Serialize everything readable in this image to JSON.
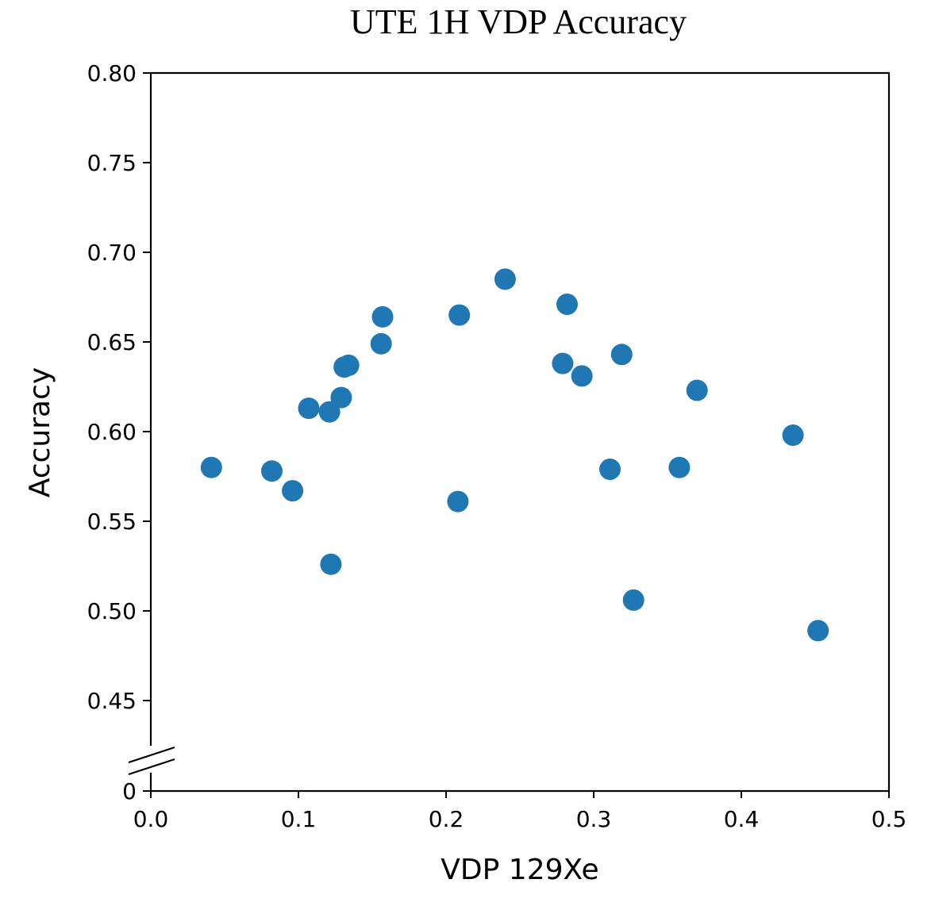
{
  "chart_data": {
    "type": "scatter",
    "title": "UTE 1H VDP Accuracy",
    "xlabel": "VDP 129Xe",
    "ylabel": "Accuracy",
    "xlim": [
      0.0,
      0.5
    ],
    "ylim_main": [
      0.45,
      0.8
    ],
    "axis_break": true,
    "grid": false,
    "marker_color": "#1f77b4",
    "x_ticks": [
      "0.0",
      "0.1",
      "0.2",
      "0.3",
      "0.4",
      "0.5"
    ],
    "y_ticks": [
      "0",
      "0.45",
      "0.50",
      "0.55",
      "0.60",
      "0.65",
      "0.70",
      "0.75",
      "0.80"
    ],
    "points": [
      {
        "x": 0.041,
        "y": 0.58
      },
      {
        "x": 0.082,
        "y": 0.578
      },
      {
        "x": 0.096,
        "y": 0.567
      },
      {
        "x": 0.107,
        "y": 0.613
      },
      {
        "x": 0.121,
        "y": 0.611
      },
      {
        "x": 0.122,
        "y": 0.526
      },
      {
        "x": 0.129,
        "y": 0.619
      },
      {
        "x": 0.131,
        "y": 0.636
      },
      {
        "x": 0.134,
        "y": 0.637
      },
      {
        "x": 0.156,
        "y": 0.649
      },
      {
        "x": 0.157,
        "y": 0.664
      },
      {
        "x": 0.208,
        "y": 0.561
      },
      {
        "x": 0.209,
        "y": 0.665
      },
      {
        "x": 0.24,
        "y": 0.685
      },
      {
        "x": 0.279,
        "y": 0.638
      },
      {
        "x": 0.282,
        "y": 0.671
      },
      {
        "x": 0.292,
        "y": 0.631
      },
      {
        "x": 0.311,
        "y": 0.579
      },
      {
        "x": 0.319,
        "y": 0.643
      },
      {
        "x": 0.327,
        "y": 0.506
      },
      {
        "x": 0.358,
        "y": 0.58
      },
      {
        "x": 0.37,
        "y": 0.623
      },
      {
        "x": 0.435,
        "y": 0.598
      },
      {
        "x": 0.452,
        "y": 0.489
      }
    ]
  }
}
